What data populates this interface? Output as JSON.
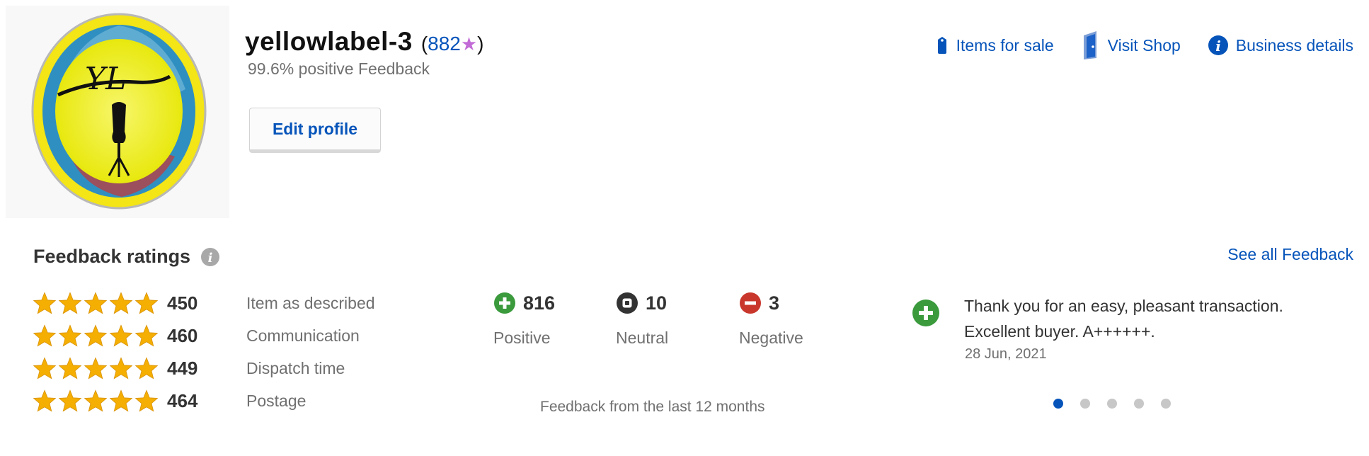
{
  "profile": {
    "username": "yellowlabel-3",
    "score_open": "(",
    "score": "882",
    "score_close": ")",
    "avatar_initials": "YL",
    "positive_feedback": "99.6% positive Feedback",
    "edit_profile_label": "Edit profile"
  },
  "top_links": [
    {
      "label": "Items for sale",
      "icon": "tag-icon"
    },
    {
      "label": "Visit Shop",
      "icon": "shop-door-icon"
    },
    {
      "label": "Business details",
      "icon": "info-icon"
    }
  ],
  "feedback": {
    "title": "Feedback ratings",
    "see_all_label": "See all Feedback",
    "detailed_ratings": [
      {
        "count": "450",
        "label": "Item as described",
        "stars": 5
      },
      {
        "count": "460",
        "label": "Communication",
        "stars": 5
      },
      {
        "count": "449",
        "label": "Dispatch time",
        "stars": 5
      },
      {
        "count": "464",
        "label": "Postage",
        "stars": 5
      }
    ],
    "summary": [
      {
        "count": "816",
        "label": "Positive",
        "icon": "plus-circle-icon",
        "color": "#3a9a3c"
      },
      {
        "count": "10",
        "label": "Neutral",
        "icon": "neutral-circle-icon",
        "color": "#333333"
      },
      {
        "count": "3",
        "label": "Negative",
        "icon": "minus-circle-icon",
        "color": "#c9372c"
      }
    ],
    "period_note": "Feedback from the last 12 months",
    "recent_comment": {
      "text": "Thank you for an easy, pleasant transaction. Excellent buyer. A++++++.",
      "date": "28 Jun, 2021",
      "type": "positive"
    },
    "carousel": {
      "total": 5,
      "active": 1
    }
  },
  "colors": {
    "link": "#0654ba",
    "star": "#f5af02",
    "avatar_ring": "#f5e61e",
    "score_star": "#c26bd6"
  }
}
